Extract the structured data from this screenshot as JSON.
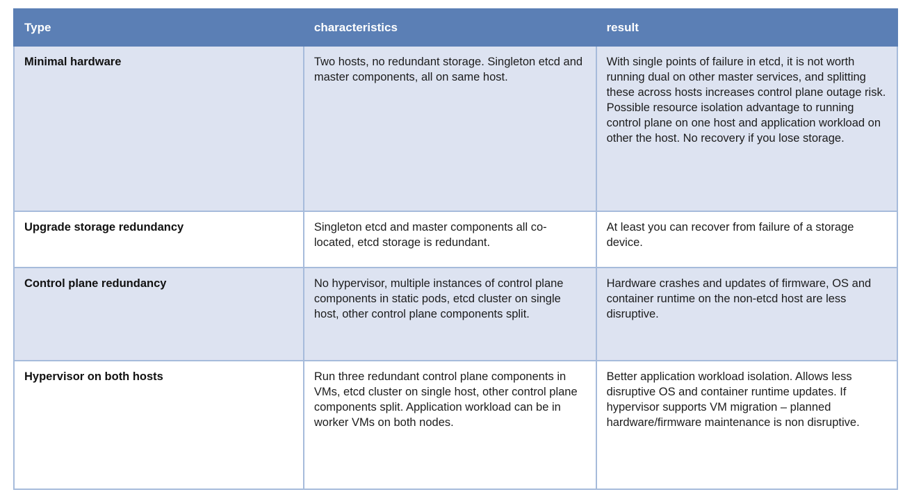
{
  "table": {
    "columns": [
      {
        "label": "Type"
      },
      {
        "label": "characteristics"
      },
      {
        "label": "result"
      }
    ],
    "rows": [
      {
        "type": "Minimal hardware",
        "characteristics": "Two hosts, no redundant storage. Singleton etcd and master components, all on same host.",
        "result": "With single points of failure in etcd, it is not worth running dual on other master services, and splitting these across hosts increases control plane outage risk. Possible resource isolation advantage to running control plane on one host and application workload on other the host. No recovery if you lose storage."
      },
      {
        "type": "Upgrade storage redundancy",
        "characteristics": "Singleton etcd and master components all co-located, etcd storage is redundant.",
        "result": "At least you can recover from failure of a storage device."
      },
      {
        "type": "Control plane redundancy",
        "characteristics": "No hypervisor, multiple instances of control plane components in static pods, etcd cluster on single host, other control plane components split.",
        "result": "Hardware crashes and updates of firmware, OS and container runtime on the non-etcd host are less disruptive."
      },
      {
        "type": "Hypervisor on both hosts",
        "characteristics": "Run three redundant control plane components in VMs, etcd cluster on single host, other control plane components split. Application workload can be in worker VMs on both nodes.",
        "result": "Better application workload isolation. Allows less disruptive OS and container runtime updates. If hypervisor supports VM migration – planned hardware/firmware maintenance is non disruptive."
      }
    ]
  },
  "colors": {
    "header_bg": "#5b7fb5",
    "header_text": "#ffffff",
    "row_alt_bg": "#dde3f1",
    "row_bg": "#ffffff",
    "border": "#a6bbdb",
    "body_text": "#1c1c1c"
  }
}
